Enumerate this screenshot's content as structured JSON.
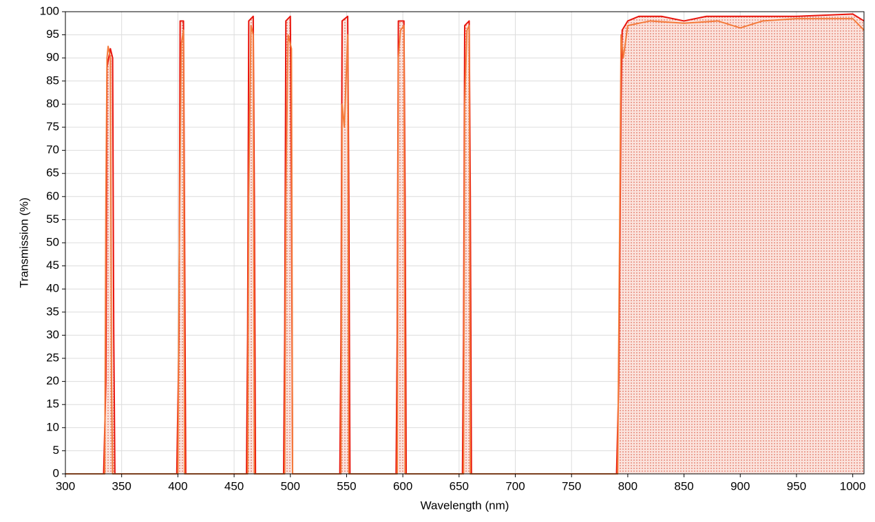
{
  "chart_data": {
    "type": "line",
    "x_label": "Wavelength (nm)",
    "y_label": "Transmission (%)",
    "xlim": [
      300,
      1010
    ],
    "ylim": [
      0,
      100
    ],
    "xticks": [
      300,
      350,
      400,
      450,
      500,
      550,
      600,
      650,
      700,
      750,
      800,
      850,
      900,
      950,
      1000
    ],
    "yticks": [
      0,
      5,
      10,
      15,
      20,
      25,
      30,
      35,
      40,
      45,
      50,
      55,
      60,
      65,
      70,
      75,
      80,
      85,
      90,
      95,
      100
    ],
    "grid": true,
    "series": [
      {
        "color": "#e8140c",
        "x": [
          300,
          334,
          336,
          337,
          340,
          342,
          343,
          344,
          399,
          401,
          402,
          405,
          406,
          407,
          461,
          462,
          463,
          467,
          468,
          469,
          494,
          495,
          496,
          500,
          501,
          502,
          544,
          545,
          546,
          551,
          552,
          553,
          594,
          595,
          596,
          601,
          602,
          603,
          653,
          654,
          655,
          659,
          660,
          661,
          790,
          792,
          794,
          795,
          800,
          810,
          830,
          850,
          870,
          900,
          950,
          1000,
          1010
        ],
        "values": [
          0,
          0,
          20,
          88,
          92,
          90,
          30,
          0,
          0,
          30,
          98,
          98,
          50,
          0,
          0,
          30,
          98,
          99,
          60,
          0,
          0,
          30,
          98,
          99,
          60,
          0,
          0,
          30,
          98,
          99,
          60,
          0,
          0,
          30,
          98,
          98,
          60,
          0,
          0,
          30,
          97,
          98,
          60,
          0,
          0,
          20,
          80,
          96,
          98,
          99,
          99,
          98,
          99,
          99,
          99,
          99.5,
          98
        ]
      },
      {
        "color": "#f47a3a",
        "x": [
          300,
          335,
          336,
          337,
          338,
          340,
          341,
          342,
          400,
          401,
          403,
          405,
          406,
          462,
          463,
          465,
          467,
          468,
          495,
          496,
          498,
          501,
          502,
          545,
          546,
          548,
          551,
          552,
          595,
          596,
          598,
          601,
          602,
          654,
          655,
          657,
          659,
          660,
          791,
          793,
          794,
          796,
          800,
          820,
          850,
          880,
          900,
          920,
          950,
          1000,
          1010
        ],
        "values": [
          0,
          0,
          60,
          90,
          92.5,
          90,
          20,
          0,
          0,
          40,
          93,
          96,
          0,
          0,
          60,
          97,
          95,
          0,
          0,
          60,
          95,
          92,
          0,
          0,
          80,
          75,
          95,
          0,
          0,
          90,
          96,
          97,
          0,
          0,
          80,
          96,
          97,
          0,
          0,
          60,
          95,
          90,
          97,
          98,
          97.5,
          98,
          96.5,
          98,
          98.5,
          98.5,
          96
        ]
      }
    ]
  }
}
